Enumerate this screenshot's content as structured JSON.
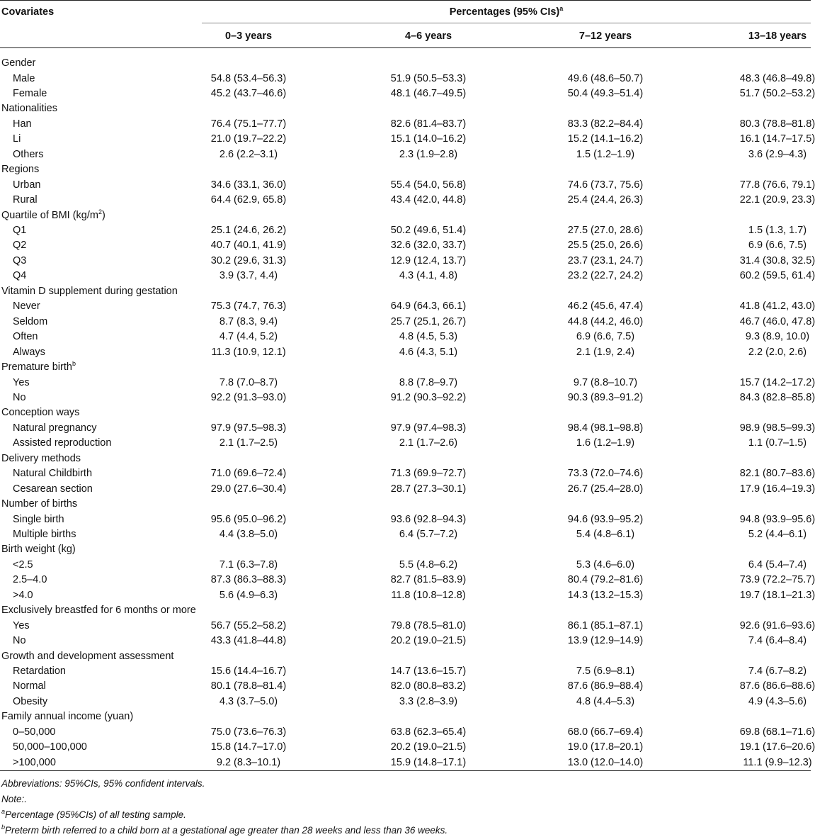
{
  "table": {
    "header": {
      "covariates": "Covariates",
      "percentages": "Percentages (95% CIs)",
      "percentages_sup": "a",
      "columns": [
        "0–3 years",
        "4–6 years",
        "7–12 years",
        "13–18 years"
      ]
    },
    "groups": [
      {
        "label": "Gender",
        "rows": [
          {
            "label": "Male",
            "values": [
              "54.8 (53.4–56.3)",
              "51.9 (50.5–53.3)",
              "49.6 (48.6–50.7)",
              "48.3 (46.8–49.8)"
            ]
          },
          {
            "label": "Female",
            "values": [
              "45.2 (43.7–46.6)",
              "48.1 (46.7–49.5)",
              "50.4 (49.3–51.4)",
              "51.7 (50.2–53.2)"
            ]
          }
        ]
      },
      {
        "label": "Nationalities",
        "rows": [
          {
            "label": "Han",
            "values": [
              "76.4 (75.1–77.7)",
              "82.6 (81.4–83.7)",
              "83.3 (82.2–84.4)",
              "80.3 (78.8–81.8)"
            ]
          },
          {
            "label": "Li",
            "values": [
              "21.0 (19.7–22.2)",
              "15.1 (14.0–16.2)",
              "15.2 (14.1–16.2)",
              "16.1 (14.7–17.5)"
            ]
          },
          {
            "label": "Others",
            "values": [
              "2.6 (2.2–3.1)",
              "2.3 (1.9–2.8)",
              "1.5 (1.2–1.9)",
              "3.6 (2.9–4.3)"
            ]
          }
        ]
      },
      {
        "label": "Regions",
        "rows": [
          {
            "label": "Urban",
            "values": [
              "34.6 (33.1, 36.0)",
              "55.4 (54.0, 56.8)",
              "74.6 (73.7, 75.6)",
              "77.8 (76.6, 79.1)"
            ]
          },
          {
            "label": "Rural",
            "values": [
              "64.4 (62.9, 65.8)",
              "43.4 (42.0, 44.8)",
              "25.4 (24.4, 26.3)",
              "22.1 (20.9, 23.3)"
            ]
          }
        ]
      },
      {
        "label": "Quartile of BMI (kg/m",
        "sup": "2",
        "label_end": ")",
        "rows": [
          {
            "label": "Q1",
            "values": [
              "25.1 (24.6, 26.2)",
              "50.2 (49.6, 51.4)",
              "27.5 (27.0, 28.6)",
              "1.5 (1.3, 1.7)"
            ]
          },
          {
            "label": "Q2",
            "values": [
              "40.7 (40.1, 41.9)",
              "32.6 (32.0, 33.7)",
              "25.5 (25.0, 26.6)",
              "6.9 (6.6, 7.5)"
            ]
          },
          {
            "label": "Q3",
            "values": [
              "30.2 (29.6, 31.3)",
              "12.9 (12.4, 13.7)",
              "23.7 (23.1, 24.7)",
              "31.4 (30.8, 32.5)"
            ]
          },
          {
            "label": "Q4",
            "values": [
              "3.9 (3.7, 4.4)",
              "4.3 (4.1, 4.8)",
              "23.2 (22.7, 24.2)",
              "60.2 (59.5, 61.4)"
            ]
          }
        ]
      },
      {
        "label": "Vitamin D supplement during gestation",
        "rows": [
          {
            "label": "Never",
            "values": [
              "75.3 (74.7, 76.3)",
              "64.9 (64.3, 66.1)",
              "46.2 (45.6, 47.4)",
              "41.8 (41.2, 43.0)"
            ]
          },
          {
            "label": "Seldom",
            "values": [
              "8.7 (8.3, 9.4)",
              "25.7 (25.1, 26.7)",
              "44.8 (44.2, 46.0)",
              "46.7 (46.0, 47.8)"
            ]
          },
          {
            "label": "Often",
            "values": [
              "4.7 (4.4, 5.2)",
              "4.8 (4.5, 5.3)",
              "6.9 (6.6, 7.5)",
              "9.3 (8.9, 10.0)"
            ]
          },
          {
            "label": "Always",
            "values": [
              "11.3 (10.9, 12.1)",
              "4.6 (4.3, 5.1)",
              "2.1 (1.9, 2.4)",
              "2.2 (2.0, 2.6)"
            ]
          }
        ]
      },
      {
        "label": "Premature birth",
        "sup": "b",
        "rows": [
          {
            "label": "Yes",
            "values": [
              "7.8 (7.0–8.7)",
              "8.8 (7.8–9.7)",
              "9.7 (8.8–10.7)",
              "15.7 (14.2–17.2)"
            ]
          },
          {
            "label": "No",
            "values": [
              "92.2 (91.3–93.0)",
              "91.2 (90.3–92.2)",
              "90.3 (89.3–91.2)",
              "84.3 (82.8–85.8)"
            ]
          }
        ]
      },
      {
        "label": "Conception ways",
        "rows": [
          {
            "label": "Natural pregnancy",
            "values": [
              "97.9 (97.5–98.3)",
              "97.9 (97.4–98.3)",
              "98.4 (98.1–98.8)",
              "98.9 (98.5–99.3)"
            ]
          },
          {
            "label": "Assisted reproduction",
            "values": [
              "2.1 (1.7–2.5)",
              "2.1 (1.7–2.6)",
              "1.6 (1.2–1.9)",
              "1.1 (0.7–1.5)"
            ]
          }
        ]
      },
      {
        "label": "Delivery methods",
        "rows": [
          {
            "label": "Natural Childbirth",
            "values": [
              "71.0 (69.6–72.4)",
              "71.3 (69.9–72.7)",
              "73.3 (72.0–74.6)",
              "82.1 (80.7–83.6)"
            ]
          },
          {
            "label": "Cesarean section",
            "values": [
              "29.0 (27.6–30.4)",
              "28.7 (27.3–30.1)",
              "26.7 (25.4–28.0)",
              "17.9 (16.4–19.3)"
            ]
          }
        ]
      },
      {
        "label": "Number of births",
        "rows": [
          {
            "label": "Single birth",
            "values": [
              "95.6 (95.0–96.2)",
              "93.6 (92.8–94.3)",
              "94.6 (93.9–95.2)",
              "94.8 (93.9–95.6)"
            ]
          },
          {
            "label": "Multiple births",
            "values": [
              "4.4 (3.8–5.0)",
              "6.4 (5.7–7.2)",
              "5.4 (4.8–6.1)",
              "5.2 (4.4–6.1)"
            ]
          }
        ]
      },
      {
        "label": "Birth weight (kg)",
        "rows": [
          {
            "label": "<2.5",
            "values": [
              "7.1 (6.3–7.8)",
              "5.5 (4.8–6.2)",
              "5.3 (4.6–6.0)",
              "6.4 (5.4–7.4)"
            ]
          },
          {
            "label": "2.5–4.0",
            "values": [
              "87.3 (86.3–88.3)",
              "82.7 (81.5–83.9)",
              "80.4 (79.2–81.6)",
              "73.9 (72.2–75.7)"
            ]
          },
          {
            "label": ">4.0",
            "values": [
              "5.6 (4.9–6.3)",
              "11.8 (10.8–12.8)",
              "14.3 (13.2–15.3)",
              "19.7 (18.1–21.3)"
            ]
          }
        ]
      },
      {
        "label": "Exclusively breastfed for 6 months or more",
        "rows": [
          {
            "label": "Yes",
            "values": [
              "56.7 (55.2–58.2)",
              "79.8 (78.5–81.0)",
              "86.1 (85.1–87.1)",
              "92.6 (91.6–93.6)"
            ]
          },
          {
            "label": "No",
            "values": [
              "43.3 (41.8–44.8)",
              "20.2 (19.0–21.5)",
              "13.9 (12.9–14.9)",
              "7.4 (6.4–8.4)"
            ]
          }
        ]
      },
      {
        "label": "Growth and development assessment",
        "rows": [
          {
            "label": "Retardation",
            "values": [
              "15.6 (14.4–16.7)",
              "14.7 (13.6–15.7)",
              "7.5 (6.9–8.1)",
              "7.4 (6.7–8.2)"
            ]
          },
          {
            "label": "Normal",
            "values": [
              "80.1 (78.8–81.4)",
              "82.0 (80.8–83.2)",
              "87.6 (86.9–88.4)",
              "87.6 (86.6–88.6)"
            ]
          },
          {
            "label": "Obesity",
            "values": [
              "4.3 (3.7–5.0)",
              "3.3 (2.8–3.9)",
              "4.8 (4.4–5.3)",
              "4.9 (4.3–5.6)"
            ]
          }
        ]
      },
      {
        "label": "Family annual income (yuan)",
        "rows": [
          {
            "label": "0–50,000",
            "values": [
              "75.0 (73.6–76.3)",
              "63.8 (62.3–65.4)",
              "68.0 (66.7–69.4)",
              "69.8 (68.1–71.6)"
            ]
          },
          {
            "label": "50,000–100,000",
            "values": [
              "15.8 (14.7–17.0)",
              "20.2 (19.0–21.5)",
              "19.0 (17.8–20.1)",
              "19.1 (17.6–20.6)"
            ]
          },
          {
            "label": ">100,000",
            "values": [
              "9.2 (8.3–10.1)",
              "15.9 (14.8–17.1)",
              "13.0 (12.0–14.0)",
              "11.1 (9.9–12.3)"
            ]
          }
        ]
      }
    ],
    "footnotes": [
      {
        "text": "Abbreviations: 95%CIs, 95% confident intervals."
      },
      {
        "text": "Note:."
      },
      {
        "sup": "a",
        "text": "Percentage (95%CIs) of all testing sample."
      },
      {
        "sup": "b",
        "text": "Preterm birth referred to a child born at a gestational age greater than 28 weeks and less than 36 weeks."
      }
    ]
  }
}
